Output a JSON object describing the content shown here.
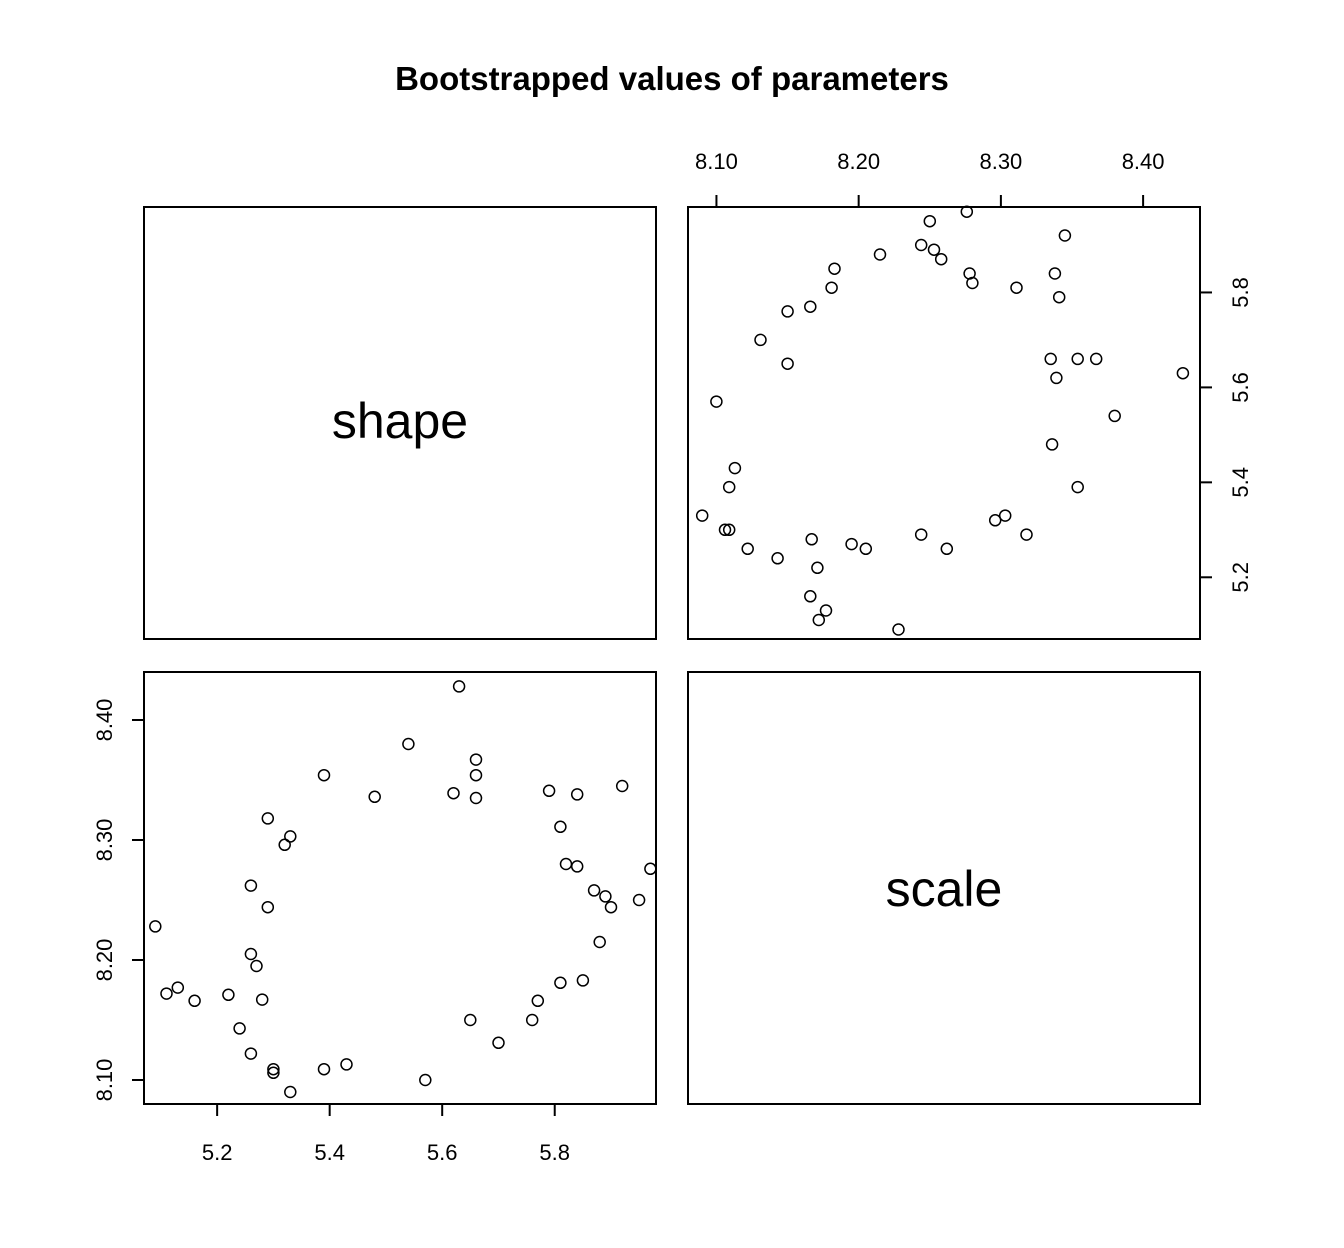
{
  "chart_data": {
    "type": "scatter",
    "title": "Bootstrapped values of parameters",
    "variables": [
      "shape",
      "scale"
    ],
    "axes": {
      "shape": {
        "ticks": [
          5.2,
          5.4,
          5.6,
          5.8
        ],
        "tick_labels": [
          "5.2",
          "5.4",
          "5.6",
          "5.8"
        ],
        "range": [
          5.07,
          5.98
        ]
      },
      "scale": {
        "ticks": [
          8.1,
          8.2,
          8.3,
          8.4
        ],
        "tick_labels": [
          "8.10",
          "8.20",
          "8.30",
          "8.40"
        ],
        "range": [
          8.08,
          8.44
        ]
      }
    },
    "grid": false,
    "legend": "none",
    "points": [
      [
        5.09,
        8.228
      ],
      [
        5.63,
        8.428
      ],
      [
        5.92,
        8.345
      ],
      [
        5.97,
        8.276
      ],
      [
        5.95,
        8.25
      ],
      [
        5.85,
        8.183
      ],
      [
        5.33,
        8.09
      ],
      [
        5.57,
        8.1
      ],
      [
        5.13,
        8.177
      ],
      [
        5.11,
        8.172
      ],
      [
        5.16,
        8.166
      ],
      [
        5.24,
        8.143
      ],
      [
        5.26,
        8.122
      ],
      [
        5.3,
        8.109
      ],
      [
        5.3,
        8.106
      ],
      [
        5.39,
        8.109
      ],
      [
        5.43,
        8.113
      ],
      [
        5.54,
        8.38
      ],
      [
        5.66,
        8.367
      ],
      [
        5.66,
        8.354
      ],
      [
        5.39,
        8.354
      ],
      [
        5.48,
        8.336
      ],
      [
        5.62,
        8.339
      ],
      [
        5.66,
        8.335
      ],
      [
        5.79,
        8.341
      ],
      [
        5.84,
        8.338
      ],
      [
        5.81,
        8.311
      ],
      [
        5.82,
        8.28
      ],
      [
        5.84,
        8.278
      ],
      [
        5.87,
        8.258
      ],
      [
        5.89,
        8.253
      ],
      [
        5.9,
        8.244
      ],
      [
        5.88,
        8.215
      ],
      [
        5.81,
        8.181
      ],
      [
        5.77,
        8.166
      ],
      [
        5.76,
        8.15
      ],
      [
        5.65,
        8.15
      ],
      [
        5.7,
        8.131
      ],
      [
        5.22,
        8.171
      ],
      [
        5.26,
        8.205
      ],
      [
        5.27,
        8.195
      ],
      [
        5.28,
        8.167
      ],
      [
        5.29,
        8.318
      ],
      [
        5.33,
        8.303
      ],
      [
        5.32,
        8.296
      ],
      [
        5.26,
        8.262
      ],
      [
        5.29,
        8.244
      ]
    ]
  }
}
